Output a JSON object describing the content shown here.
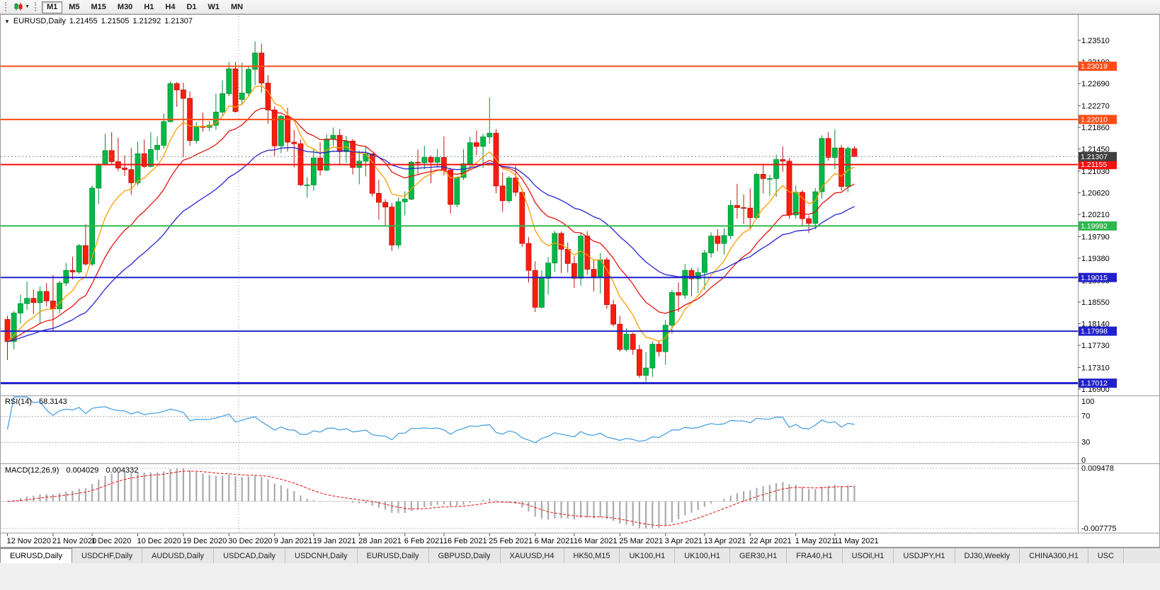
{
  "toolbar": {
    "timeframes": [
      "M1",
      "M5",
      "M15",
      "M30",
      "H1",
      "H4",
      "D1",
      "W1",
      "MN"
    ],
    "active_timeframe": "M1"
  },
  "chart_data": {
    "type": "candlestick",
    "header": {
      "symbol_period": "EURUSD,Daily",
      "open": "1.21455",
      "high": "1.21505",
      "low": "1.21292",
      "close": "1.21307"
    },
    "up_color": "#00B845",
    "up_border": "#008F36",
    "down_color": "#FB1D0F",
    "down_border": "#BD130A",
    "y_axis": {
      "labels": [
        "1.23510",
        "1.23100",
        "1.22690",
        "1.22270",
        "1.21860",
        "1.21450",
        "1.21030",
        "1.20620",
        "1.20210",
        "1.19790",
        "1.19380",
        "1.18960",
        "1.18550",
        "1.18140",
        "1.17730",
        "1.17310",
        "1.16900"
      ],
      "price_top": 1.23966,
      "price_bottom": 1.16806
    },
    "x_labels": [
      {
        "t": "12 Nov 2020",
        "i": 0
      },
      {
        "t": "21 Nov 2020",
        "i": 7
      },
      {
        "t": "1 Dec 2020",
        "i": 13
      },
      {
        "t": "10 Dec 2020",
        "i": 20
      },
      {
        "t": "19 Dec 2020",
        "i": 27
      },
      {
        "t": "30 Dec 2020",
        "i": 34
      },
      {
        "t": "9 Jan 2021",
        "i": 41
      },
      {
        "t": "19 Jan 2021",
        "i": 47
      },
      {
        "t": "28 Jan 2021",
        "i": 54
      },
      {
        "t": "6 Feb 2021",
        "i": 61
      },
      {
        "t": "16 Feb 2021",
        "i": 67
      },
      {
        "t": "25 Feb 2021",
        "i": 74
      },
      {
        "t": "6 Mar 2021",
        "i": 81
      },
      {
        "t": "16 Mar 2021",
        "i": 87
      },
      {
        "t": "25 Mar 2021",
        "i": 94
      },
      {
        "t": "3 Apr 2021",
        "i": 101
      },
      {
        "t": "13 Apr 2021",
        "i": 107
      },
      {
        "t": "22 Apr 2021",
        "i": 114
      },
      {
        "t": "1 May 2021",
        "i": 121
      },
      {
        "t": "11 May 2021",
        "i": 127
      }
    ],
    "year_separator_index": 35.5,
    "hlines": [
      {
        "value": 1.23019,
        "label": "1.23019",
        "color": "#FF4C17",
        "width": 2
      },
      {
        "value": 1.2201,
        "label": "1.22010",
        "color": "#FF4C17",
        "width": 2
      },
      {
        "value": 1.21155,
        "label": "1.21155",
        "color": "#F50F0F",
        "width": 2
      },
      {
        "value": 1.19992,
        "label": "1.19992",
        "color": "#2FB84F",
        "width": 2
      },
      {
        "value": 1.19015,
        "label": "1.19015",
        "color": "#2121CC",
        "width": 2
      },
      {
        "value": 1.17998,
        "label": "1.17998",
        "color": "#2121CC",
        "width": 2
      },
      {
        "value": 1.17012,
        "label": "1.17012",
        "color": "#2121CC",
        "width": 3
      }
    ],
    "current_price": {
      "value": 1.21307,
      "label": "1.21307",
      "line_color": "#8C8C8C",
      "badge_color": "#3F3F3F"
    },
    "moving_averages": [
      {
        "name": "fast",
        "period": 8,
        "color": "#FF9D00"
      },
      {
        "name": "mid",
        "period": 17,
        "color": "#E3150D"
      },
      {
        "name": "slow",
        "period": 34,
        "color": "#2424D0"
      }
    ],
    "indicators": {
      "rsi": {
        "label": "RSI(14)",
        "value": "58.3143",
        "period": 14,
        "levels": [
          70,
          30
        ],
        "color": "#3E9BDE",
        "axis_labels": [
          {
            "v": 100,
            "t": "100"
          },
          {
            "v": 70,
            "t": "70"
          },
          {
            "v": 30,
            "t": "30"
          },
          {
            "v": 0,
            "t": "0"
          }
        ]
      },
      "macd": {
        "label": "MACD(12,26,9)",
        "value_main": "0.004029",
        "value_signal": "0.004332",
        "fast": 12,
        "slow": 26,
        "signal": 9,
        "axis_max": 0.009478,
        "axis_min": -0.007775,
        "axis_max_label": "0.009478",
        "axis_min_label": "-0.007775",
        "histogram_color": "#ABABAB",
        "signal_color": "#E3150D"
      }
    },
    "candles": [
      [
        1.1822,
        1.1829,
        1.1745,
        1.178
      ],
      [
        1.178,
        1.1838,
        1.1765,
        1.1834
      ],
      [
        1.1834,
        1.1869,
        1.1814,
        1.1852
      ],
      [
        1.1852,
        1.1894,
        1.184,
        1.1862
      ],
      [
        1.1862,
        1.1879,
        1.1832,
        1.1854
      ],
      [
        1.1854,
        1.1884,
        1.1815,
        1.1875
      ],
      [
        1.1875,
        1.1891,
        1.1847,
        1.1857
      ],
      [
        1.1857,
        1.1906,
        1.18,
        1.1842
      ],
      [
        1.1842,
        1.1895,
        1.1833,
        1.1891
      ],
      [
        1.1891,
        1.1929,
        1.1885,
        1.1915
      ],
      [
        1.1915,
        1.1941,
        1.1898,
        1.1912
      ],
      [
        1.1912,
        1.1965,
        1.1908,
        1.1962
      ],
      [
        1.1962,
        1.2003,
        1.1924,
        1.1927
      ],
      [
        1.1927,
        1.2076,
        1.1923,
        1.2071
      ],
      [
        1.2071,
        1.2118,
        1.204,
        1.2115
      ],
      [
        1.2115,
        1.2174,
        1.2114,
        1.2142
      ],
      [
        1.2142,
        1.2177,
        1.2115,
        1.2121
      ],
      [
        1.2121,
        1.2166,
        1.2103,
        1.2109
      ],
      [
        1.2109,
        1.2133,
        1.2094,
        1.2106
      ],
      [
        1.2106,
        1.2147,
        1.2058,
        1.2081
      ],
      [
        1.2081,
        1.2159,
        1.2076,
        1.2136
      ],
      [
        1.2136,
        1.2163,
        1.2109,
        1.2112
      ],
      [
        1.2112,
        1.2177,
        1.211,
        1.2144
      ],
      [
        1.2144,
        1.2169,
        1.2123,
        1.2152
      ],
      [
        1.2152,
        1.2212,
        1.2146,
        1.2197
      ],
      [
        1.2197,
        1.2273,
        1.2195,
        1.2269
      ],
      [
        1.2269,
        1.2272,
        1.2225,
        1.2257
      ],
      [
        1.2257,
        1.2271,
        1.2129,
        1.2241
      ],
      [
        1.2241,
        1.2254,
        1.2151,
        1.2161
      ],
      [
        1.2161,
        1.2196,
        1.2155,
        1.2188
      ],
      [
        1.2188,
        1.2214,
        1.2178,
        1.2186
      ],
      [
        1.2186,
        1.2198,
        1.2179,
        1.219
      ],
      [
        1.219,
        1.225,
        1.2181,
        1.2215
      ],
      [
        1.2215,
        1.2275,
        1.2208,
        1.225
      ],
      [
        1.225,
        1.231,
        1.2245,
        1.2297
      ],
      [
        1.2297,
        1.231,
        1.2214,
        1.2216
      ],
      [
        1.2239,
        1.2309,
        1.2228,
        1.2251
      ],
      [
        1.2251,
        1.2303,
        1.2245,
        1.2296
      ],
      [
        1.2296,
        1.2349,
        1.2266,
        1.2327
      ],
      [
        1.2327,
        1.2344,
        1.2252,
        1.227
      ],
      [
        1.227,
        1.2285,
        1.2193,
        1.2219
      ],
      [
        1.2219,
        1.2226,
        1.2132,
        1.2151
      ],
      [
        1.2151,
        1.221,
        1.2137,
        1.2207
      ],
      [
        1.2207,
        1.2223,
        1.214,
        1.2158
      ],
      [
        1.2158,
        1.2181,
        1.211,
        1.2155
      ],
      [
        1.2155,
        1.2163,
        1.2075,
        1.2077
      ],
      [
        1.2077,
        1.2092,
        1.2053,
        1.2077
      ],
      [
        1.2077,
        1.2145,
        1.2066,
        1.2128
      ],
      [
        1.2128,
        1.2158,
        1.2095,
        1.2105
      ],
      [
        1.2105,
        1.2173,
        1.2103,
        1.2164
      ],
      [
        1.2164,
        1.2186,
        1.2151,
        1.2171
      ],
      [
        1.2171,
        1.2183,
        1.2116,
        1.214
      ],
      [
        1.214,
        1.217,
        1.2119,
        1.216
      ],
      [
        1.216,
        1.2164,
        1.2097,
        1.211
      ],
      [
        1.211,
        1.2142,
        1.2078,
        1.2122
      ],
      [
        1.2122,
        1.2151,
        1.2093,
        1.2136
      ],
      [
        1.2136,
        1.2136,
        1.2055,
        1.2061
      ],
      [
        1.2061,
        1.2087,
        1.2011,
        1.2044
      ],
      [
        1.2044,
        1.205,
        1.1999,
        1.2035
      ],
      [
        1.2035,
        1.2043,
        1.1952,
        1.1963
      ],
      [
        1.1963,
        1.2053,
        1.1956,
        1.2045
      ],
      [
        1.2045,
        1.2065,
        1.2019,
        1.205
      ],
      [
        1.205,
        1.2123,
        1.2048,
        1.212
      ],
      [
        1.212,
        1.2144,
        1.2097,
        1.2119
      ],
      [
        1.2119,
        1.2151,
        1.2107,
        1.2129
      ],
      [
        1.2129,
        1.2133,
        1.208,
        1.212
      ],
      [
        1.212,
        1.2145,
        1.211,
        1.2129
      ],
      [
        1.2129,
        1.2169,
        1.2095,
        1.2105
      ],
      [
        1.2105,
        1.211,
        1.2023,
        1.204
      ],
      [
        1.204,
        1.2093,
        1.2035,
        1.2091
      ],
      [
        1.2091,
        1.2145,
        1.2086,
        1.2117
      ],
      [
        1.2117,
        1.2168,
        1.2107,
        1.2157
      ],
      [
        1.2157,
        1.218,
        1.2133,
        1.215
      ],
      [
        1.215,
        1.2174,
        1.2109,
        1.2168
      ],
      [
        1.2168,
        1.2243,
        1.2155,
        1.2175
      ],
      [
        1.2175,
        1.2183,
        1.2061,
        1.2075
      ],
      [
        1.2075,
        1.2101,
        1.2026,
        1.2047
      ],
      [
        1.2047,
        1.2094,
        1.2043,
        1.209
      ],
      [
        1.209,
        1.2113,
        1.2055,
        1.2063
      ],
      [
        1.2063,
        1.207,
        1.196,
        1.1966
      ],
      [
        1.1966,
        1.1978,
        1.1892,
        1.1915
      ],
      [
        1.1915,
        1.1932,
        1.1836,
        1.1845
      ],
      [
        1.1845,
        1.1915,
        1.1843,
        1.19
      ],
      [
        1.19,
        1.194,
        1.1869,
        1.1929
      ],
      [
        1.1929,
        1.199,
        1.1912,
        1.1985
      ],
      [
        1.1985,
        1.1989,
        1.191,
        1.1955
      ],
      [
        1.1955,
        1.1968,
        1.1911,
        1.1928
      ],
      [
        1.1928,
        1.1942,
        1.1882,
        1.19
      ],
      [
        1.19,
        1.1986,
        1.1886,
        1.198
      ],
      [
        1.198,
        1.1989,
        1.1906,
        1.1917
      ],
      [
        1.1917,
        1.1935,
        1.1875,
        1.1903
      ],
      [
        1.1903,
        1.1948,
        1.1871,
        1.1935
      ],
      [
        1.1935,
        1.194,
        1.1842,
        1.185
      ],
      [
        1.185,
        1.1859,
        1.1809,
        1.1813
      ],
      [
        1.1813,
        1.1829,
        1.1761,
        1.1765
      ],
      [
        1.1765,
        1.1805,
        1.1761,
        1.1794
      ],
      [
        1.1794,
        1.1797,
        1.1755,
        1.1765
      ],
      [
        1.1765,
        1.1774,
        1.1711,
        1.1716
      ],
      [
        1.1716,
        1.176,
        1.1704,
        1.173
      ],
      [
        1.173,
        1.1781,
        1.1713,
        1.1775
      ],
      [
        1.1775,
        1.1782,
        1.1752,
        1.1761
      ],
      [
        1.1761,
        1.1821,
        1.1736,
        1.1811
      ],
      [
        1.1811,
        1.1878,
        1.1795,
        1.1873
      ],
      [
        1.1873,
        1.1892,
        1.1836,
        1.1868
      ],
      [
        1.1868,
        1.1927,
        1.1861,
        1.1915
      ],
      [
        1.1915,
        1.192,
        1.1866,
        1.1899
      ],
      [
        1.1899,
        1.192,
        1.1872,
        1.1911
      ],
      [
        1.1911,
        1.1954,
        1.1878,
        1.1948
      ],
      [
        1.1948,
        1.1987,
        1.1939,
        1.198
      ],
      [
        1.198,
        1.1993,
        1.1951,
        1.1966
      ],
      [
        1.1966,
        1.1995,
        1.1945,
        1.1981
      ],
      [
        1.1981,
        1.2048,
        1.1974,
        1.2038
      ],
      [
        1.2038,
        1.2079,
        1.2013,
        1.2034
      ],
      [
        1.2034,
        1.2059,
        1.2003,
        1.2033
      ],
      [
        1.2033,
        1.207,
        1.1993,
        1.2015
      ],
      [
        1.2015,
        1.21,
        1.2012,
        1.2097
      ],
      [
        1.2097,
        1.2117,
        1.2061,
        1.2089
      ],
      [
        1.2089,
        1.2096,
        1.2056,
        1.2089
      ],
      [
        1.2089,
        1.2134,
        1.2054,
        1.2125
      ],
      [
        1.2125,
        1.215,
        1.2102,
        1.2122
      ],
      [
        1.2122,
        1.2128,
        1.2013,
        1.202
      ],
      [
        1.202,
        1.2076,
        1.2013,
        1.2063
      ],
      [
        1.2063,
        1.2067,
        1.1999,
        1.2013
      ],
      [
        1.2013,
        1.2019,
        1.1986,
        1.2004
      ],
      [
        1.2004,
        1.2071,
        1.1993,
        1.2064
      ],
      [
        1.2064,
        1.2171,
        1.2051,
        1.2165
      ],
      [
        1.2165,
        1.2177,
        1.2123,
        1.2129
      ],
      [
        1.2129,
        1.2182,
        1.2107,
        1.2147
      ],
      [
        1.2147,
        1.2153,
        1.2066,
        1.2074
      ],
      [
        1.2074,
        1.215,
        1.2063,
        1.2146
      ],
      [
        1.21455,
        1.21505,
        1.21292,
        1.21307
      ]
    ]
  },
  "tabbar": {
    "active_index": 0,
    "tabs": [
      "EURUSD,Daily",
      "USDCHF,Daily",
      "AUDUSD,Daily",
      "USDCAD,Daily",
      "USDCNH,Daily",
      "EURUSD,Daily",
      "GBPUSD,Daily",
      "XAUUSD,H4",
      "HK50,M15",
      "UK100,H1",
      "UK100,H1",
      "GER30,H1",
      "FRA40,H1",
      "USOil,H1",
      "USDJPY,H1",
      "DJ30,Weekly",
      "CHINA300,H1",
      "USC"
    ]
  }
}
